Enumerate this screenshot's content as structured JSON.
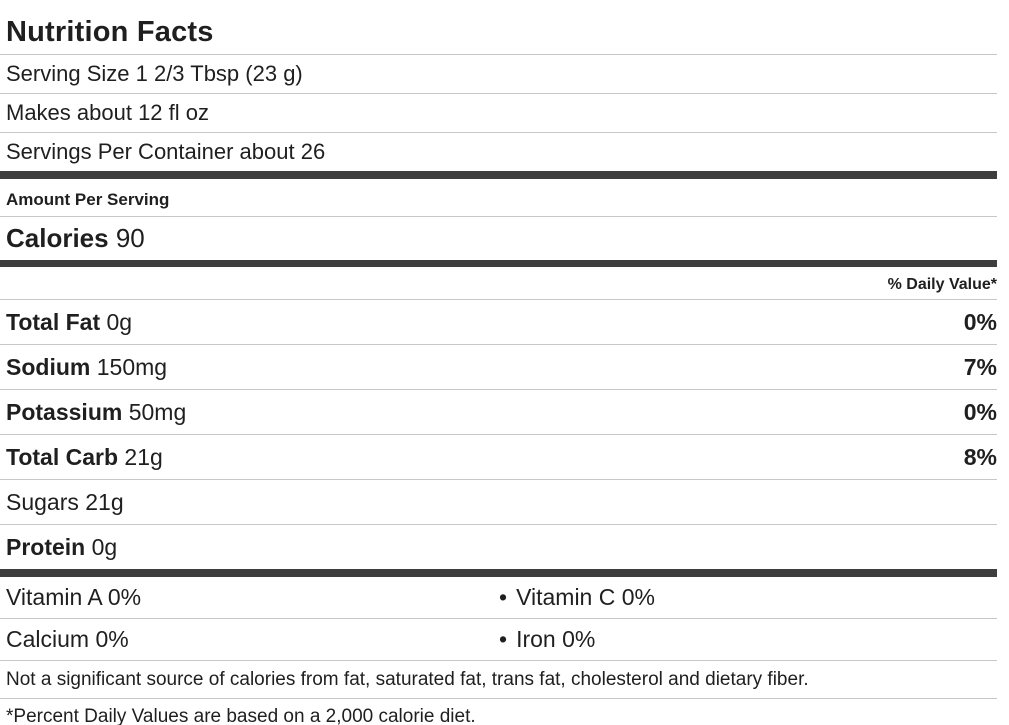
{
  "title": "Nutrition Facts",
  "serving": {
    "serving_size": "Serving Size 1 2/3 Tbsp (23 g)",
    "makes": "Makes about 12 fl oz",
    "servings_per_container": "Servings Per Container about 26"
  },
  "amount_per_serving_label": "Amount Per Serving",
  "calories": {
    "label": "Calories",
    "value": "90"
  },
  "daily_value_header": "% Daily Value*",
  "nutrients": [
    {
      "name": "Total Fat",
      "amount": "0g",
      "dv": "0%"
    },
    {
      "name": "Sodium",
      "amount": "150mg",
      "dv": "7%"
    },
    {
      "name": "Potassium",
      "amount": "50mg",
      "dv": "0%"
    },
    {
      "name": "Total Carb",
      "amount": "21g",
      "dv": "8%"
    },
    {
      "name": "Sugars",
      "amount": "21g",
      "dv": ""
    },
    {
      "name": "Protein",
      "amount": "0g",
      "dv": ""
    }
  ],
  "bullet": "•",
  "micronutrients": [
    {
      "left": "Vitamin A 0%",
      "right": "Vitamin C 0%"
    },
    {
      "left": "Calcium 0%",
      "right": "Iron 0%"
    }
  ],
  "footnotes": {
    "not_significant": "Not a significant source of calories from fat, saturated fat, trans fat, cholesterol and dietary fiber.",
    "percent_dv": "*Percent Daily Values are based on a 2,000 calorie diet."
  },
  "colors": {
    "text": "#1f1f1f",
    "divider": "#c7c7c7",
    "section_bar": "#3e3e3e"
  }
}
